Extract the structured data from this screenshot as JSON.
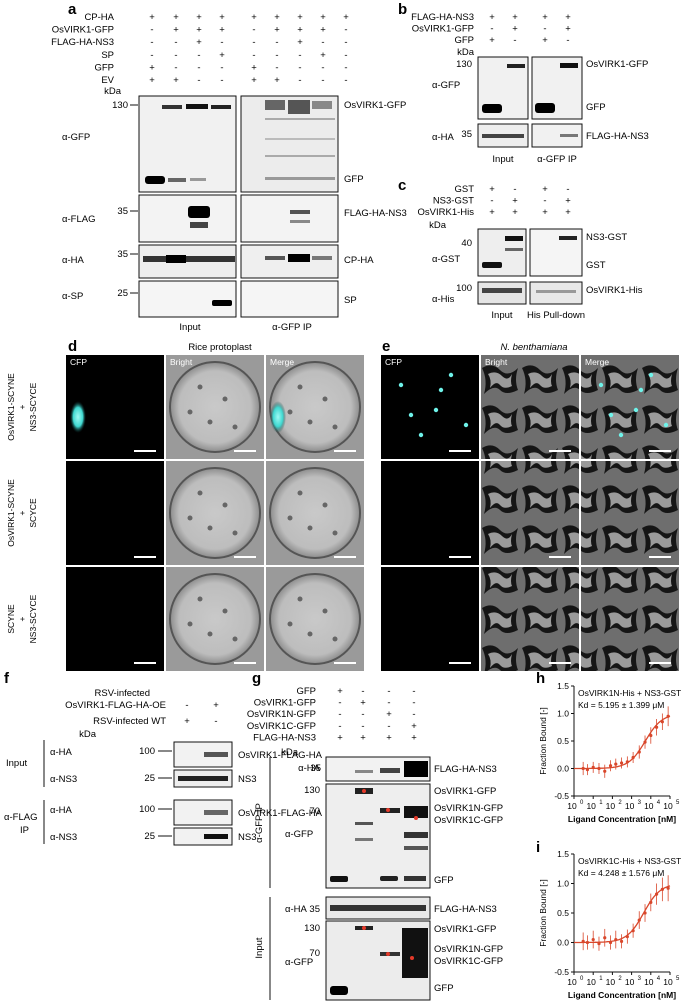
{
  "panel_a": {
    "letter": "a",
    "rows": [
      {
        "label": "CP-HA",
        "signs": [
          "+",
          "+",
          "+",
          "+",
          "+",
          "+",
          "+",
          "+",
          "+"
        ]
      },
      {
        "label": "OsVIRK1-GFP",
        "signs": [
          "-",
          "+",
          "+",
          "+",
          "-",
          "+",
          "+",
          "+",
          "-"
        ]
      },
      {
        "label": "FLAG-HA-NS3",
        "signs": [
          "-",
          "-",
          "+",
          "-",
          "-",
          "-",
          "+",
          "-",
          "-"
        ]
      },
      {
        "label": "SP",
        "signs": [
          "-",
          "-",
          "-",
          "+",
          "-",
          "-",
          "-",
          "+",
          "-"
        ]
      },
      {
        "label": "GFP",
        "signs": [
          "+",
          "-",
          "-",
          "-",
          "+",
          "-",
          "-",
          "-",
          "-"
        ]
      },
      {
        "label": "EV",
        "signs": [
          "+",
          "+",
          "-",
          "-",
          "+",
          "+",
          "-",
          "-",
          "-"
        ]
      }
    ],
    "kda": "kDa",
    "markers": [
      "130",
      "35",
      "35",
      "25"
    ],
    "antibodies": [
      "α-GFP",
      "α-FLAG",
      "α-HA",
      "α-SP"
    ],
    "bands": [
      "OsVIRK1-GFP",
      "GFP",
      "FLAG-HA-NS3",
      "CP-HA",
      "SP"
    ],
    "input": "Input",
    "ip": "α-GFP IP"
  },
  "panel_b": {
    "letter": "b",
    "rows": [
      {
        "label": "FLAG-HA-NS3",
        "signs": [
          "+",
          "+",
          "+",
          "+"
        ]
      },
      {
        "label": "OsVIRK1-GFP",
        "signs": [
          "-",
          "+",
          "-",
          "+"
        ]
      },
      {
        "label": "GFP",
        "signs": [
          "+",
          "-",
          "+",
          "-"
        ]
      }
    ],
    "kda": "kDa",
    "markers": [
      "130",
      "35"
    ],
    "antibodies": [
      "α-GFP",
      "α-HA"
    ],
    "bands": [
      "OsVIRK1-GFP",
      "GFP",
      "FLAG-HA-NS3"
    ],
    "input": "Input",
    "ip": "α-GFP IP"
  },
  "panel_c": {
    "letter": "c",
    "rows": [
      {
        "label": "GST",
        "signs": [
          "+",
          "-",
          "+",
          "-"
        ]
      },
      {
        "label": "NS3-GST",
        "signs": [
          "-",
          "+",
          "-",
          "+"
        ]
      },
      {
        "label": "OsVIRK1-His",
        "signs": [
          "+",
          "+",
          "+",
          "+"
        ]
      }
    ],
    "kda": "kDa",
    "markers": [
      "40",
      "100"
    ],
    "antibodies": [
      "α-GST",
      "α-His"
    ],
    "bands": [
      "NS3-GST",
      "GST",
      "OsVIRK1-His"
    ],
    "input": "Input",
    "pulldown": "His Pull-down"
  },
  "panel_d": {
    "letter": "d",
    "title": "Rice protoplast",
    "channels": [
      "CFP",
      "Bright",
      "Merge"
    ],
    "rows": [
      [
        "OsVIRK1-SCYNE",
        "+",
        "NS3-SCYCE"
      ],
      [
        "OsVIRK1-SCYNE",
        "+",
        "SCYCE"
      ],
      [
        "SCYNE",
        "+",
        "NS3-SCYCE"
      ]
    ]
  },
  "panel_e": {
    "letter": "e",
    "title": "N. benthamiana",
    "channels": [
      "CFP",
      "Bright",
      "Merge"
    ]
  },
  "panel_f": {
    "letter": "f",
    "row1": [
      "RSV-infected",
      "OsVIRK1-FLAG-HA-OE"
    ],
    "row1_signs": [
      "-",
      "+"
    ],
    "row2": "RSV-infected WT",
    "row2_signs": [
      "+",
      "-"
    ],
    "kda": "kDa",
    "groups": [
      "Input",
      "α-FLAG",
      "IP"
    ],
    "antibodies": [
      "α-HA",
      "α-NS3",
      "α-HA",
      "α-NS3"
    ],
    "markers": [
      "100",
      "25",
      "100",
      "25"
    ],
    "bands": [
      "OsVIRK1-FLAG-HA",
      "NS3",
      "OsVIRK1-FLAG-HA",
      "NS3"
    ]
  },
  "panel_g": {
    "letter": "g",
    "rows": [
      {
        "label": "GFP",
        "signs": [
          "+",
          "-",
          "-",
          "-"
        ]
      },
      {
        "label": "OsVIRK1-GFP",
        "signs": [
          "-",
          "+",
          "-",
          "-"
        ]
      },
      {
        "label": "OsVIRK1N-GFP",
        "signs": [
          "-",
          "-",
          "+",
          "-"
        ]
      },
      {
        "label": "OsVIRK1C-GFP",
        "signs": [
          "-",
          "-",
          "-",
          "+"
        ]
      },
      {
        "label": "FLAG-HA-NS3",
        "signs": [
          "+",
          "+",
          "+",
          "+"
        ]
      }
    ],
    "kda": "kDa",
    "groups": [
      "α-GFP IP",
      "Input"
    ],
    "antibodies": [
      "α-HA",
      "α-GFP",
      "α-HA",
      "α-GFP"
    ],
    "markers": [
      "35",
      "130",
      "70",
      "35",
      "130",
      "70"
    ],
    "bands_ip": [
      "FLAG-HA-NS3",
      "OsVIRK1-GFP",
      "OsVIRK1N-GFP",
      "OsVIRK1C-GFP",
      "GFP"
    ],
    "bands_input": [
      "FLAG-HA-NS3",
      "OsVIRK1-GFP",
      "OsVIRK1N-GFP",
      "OsVIRK1C-GFP",
      "GFP"
    ]
  },
  "colors": {
    "curve": "#d9472b",
    "fluor": "#3fd8d0"
  },
  "chart_data": [
    {
      "type": "scatter",
      "panel": "h",
      "annotation": "OsVIRK1N-His + NS3-GST",
      "kd": "Kd = 5.195 ± 1.399 μM",
      "xlabel": "Ligand Concentration [nM]",
      "ylabel": "Fraction Bound [-]",
      "xscale": "log",
      "xlim": [
        1,
        100000
      ],
      "ylim": [
        -0.5,
        1.5
      ],
      "xticks": [
        1,
        10,
        100,
        1000,
        10000,
        100000
      ],
      "xticklabels": [
        "10",
        "10",
        "10",
        "10",
        "10",
        "10"
      ],
      "xtickexp": [
        "0",
        "1",
        "2",
        "3",
        "4",
        "5"
      ],
      "yticks": [
        -0.5,
        0.0,
        0.5,
        1.0,
        1.5
      ],
      "yticklabels": [
        "-0.5",
        "0.0",
        "0.5",
        "1.0",
        "1.5"
      ],
      "kd_nM": 5195,
      "x": [
        3,
        5,
        10,
        20,
        40,
        80,
        150,
        300,
        600,
        1200,
        2500,
        5000,
        10000,
        20000,
        40000,
        80000
      ],
      "y": [
        0.0,
        -0.02,
        0.02,
        0.0,
        -0.05,
        0.05,
        0.08,
        0.1,
        0.12,
        0.2,
        0.3,
        0.48,
        0.6,
        0.75,
        0.85,
        0.95
      ],
      "err": [
        0.12,
        0.1,
        0.1,
        0.1,
        0.12,
        0.1,
        0.1,
        0.1,
        0.1,
        0.1,
        0.12,
        0.12,
        0.15,
        0.15,
        0.15,
        0.18
      ],
      "grid": false
    },
    {
      "type": "scatter",
      "panel": "i",
      "annotation": "OsVIRK1C-His + NS3-GST",
      "kd": "Kd = 4.248 ± 1.576 μM",
      "xlabel": "Ligand Concentration [nM]",
      "ylabel": "Fraction Bound [-]",
      "xscale": "log",
      "xlim": [
        1,
        100000
      ],
      "ylim": [
        -0.5,
        1.5
      ],
      "xticks": [
        1,
        10,
        100,
        1000,
        10000,
        100000
      ],
      "xticklabels": [
        "10",
        "10",
        "10",
        "10",
        "10",
        "10"
      ],
      "xtickexp": [
        "0",
        "1",
        "2",
        "3",
        "4",
        "5"
      ],
      "yticks": [
        -0.5,
        0.0,
        0.5,
        1.0,
        1.5
      ],
      "yticklabels": [
        "-0.5",
        "0.0",
        "0.5",
        "1.0",
        "1.5"
      ],
      "kd_nM": 4248,
      "x": [
        3,
        5,
        10,
        20,
        40,
        80,
        150,
        300,
        600,
        1200,
        2500,
        5000,
        10000,
        20000,
        40000,
        80000
      ],
      "y": [
        0.02,
        0.0,
        0.05,
        -0.02,
        0.08,
        0.0,
        0.05,
        0.02,
        0.1,
        0.2,
        0.38,
        0.5,
        0.68,
        0.82,
        0.9,
        0.92
      ],
      "err": [
        0.15,
        0.12,
        0.15,
        0.12,
        0.15,
        0.12,
        0.15,
        0.12,
        0.12,
        0.12,
        0.15,
        0.15,
        0.15,
        0.18,
        0.2,
        0.22
      ],
      "grid": false
    }
  ]
}
